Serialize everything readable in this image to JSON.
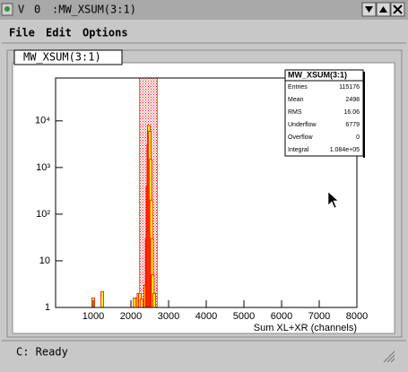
{
  "window": {
    "title": ":MW_XSUM(3:1)",
    "title_icons": [
      "V",
      "0"
    ]
  },
  "menu": [
    "File",
    "Edit",
    "Options"
  ],
  "tab": "MW_XSUM(3:1)",
  "status": "C: Ready",
  "chart_data": {
    "type": "histogram",
    "x_label": "Sum XL+XR (channels)",
    "x": [
      1000,
      1240,
      2100,
      2160,
      2200,
      2240,
      2280,
      2380,
      2420,
      2440,
      2460,
      2480,
      2500,
      2520,
      2540,
      2560,
      2580,
      2620
    ],
    "values": [
      1.6,
      2.2,
      1.6,
      1.6,
      2,
      2,
      1.5,
      3,
      30,
      400,
      3000,
      8000,
      6000,
      1500,
      200,
      30,
      5,
      2
    ],
    "fill_color": "#ffff00",
    "line_color": "#ff0000",
    "shaded_range": [
      2230,
      2700
    ],
    "xlim": [
      0,
      8000
    ],
    "xticks": [
      1000,
      2000,
      3000,
      4000,
      5000,
      6000,
      7000,
      8000
    ],
    "ylim": [
      1,
      83000
    ],
    "log_y": true,
    "yticks": [
      1,
      10,
      {
        "value": 100,
        "label": "10²"
      },
      {
        "value": 1000,
        "label": "10³"
      },
      {
        "value": 10000,
        "label": "10⁴"
      }
    ],
    "stats": {
      "title": "MW_XSUM(3:1)",
      "rows": [
        {
          "label": "Entries",
          "value": 115176
        },
        {
          "label": "Mean",
          "value": 2498
        },
        {
          "label": "RMS",
          "value": 16.06
        },
        {
          "label": "Underflow",
          "value": 6779
        },
        {
          "label": "Overflow",
          "value": 0
        },
        {
          "label": "Integral",
          "value": {
            "value": 108400,
            "label": "1.084e+05"
          }
        }
      ]
    }
  }
}
